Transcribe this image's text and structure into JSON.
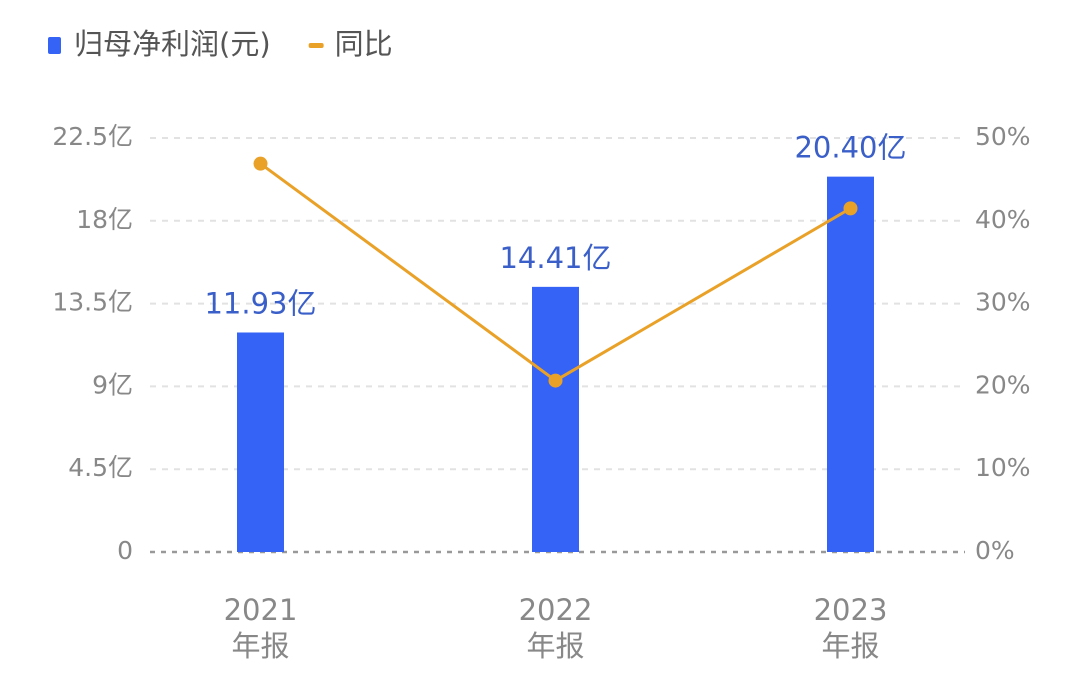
{
  "chart_data": {
    "type": "bar-line",
    "categories": [
      "2021\n年报",
      "2022\n年报",
      "2023\n年报"
    ],
    "series": [
      {
        "name": "归母净利润(元)",
        "type": "bar",
        "color": "#3563f5",
        "values": [
          11.93,
          14.41,
          20.4
        ],
        "value_labels": [
          "11.93亿",
          "14.41亿",
          "20.40亿"
        ]
      },
      {
        "name": "同比",
        "type": "line",
        "color": "#e9a128",
        "axis": "y2",
        "values": [
          46.9,
          20.7,
          41.5
        ]
      }
    ],
    "ylim": [
      0,
      22.5
    ],
    "yticks": [
      0,
      {
        "value": 4.5,
        "label": "4.5亿"
      },
      {
        "value": 9,
        "label": "9亿"
      },
      {
        "value": 13.5,
        "label": "13.5亿"
      },
      {
        "value": 18,
        "label": "18亿"
      },
      {
        "value": 22.5,
        "label": "22.5亿"
      }
    ],
    "y2lim": [
      0,
      50
    ],
    "y2ticks": [
      {
        "value": 0,
        "label": "0%"
      },
      {
        "value": 10,
        "label": "10%"
      },
      {
        "value": 20,
        "label": "20%"
      },
      {
        "value": 30,
        "label": "30%"
      },
      {
        "value": 40,
        "label": "40%"
      },
      {
        "value": 50,
        "label": "50%"
      }
    ],
    "grid": true
  }
}
